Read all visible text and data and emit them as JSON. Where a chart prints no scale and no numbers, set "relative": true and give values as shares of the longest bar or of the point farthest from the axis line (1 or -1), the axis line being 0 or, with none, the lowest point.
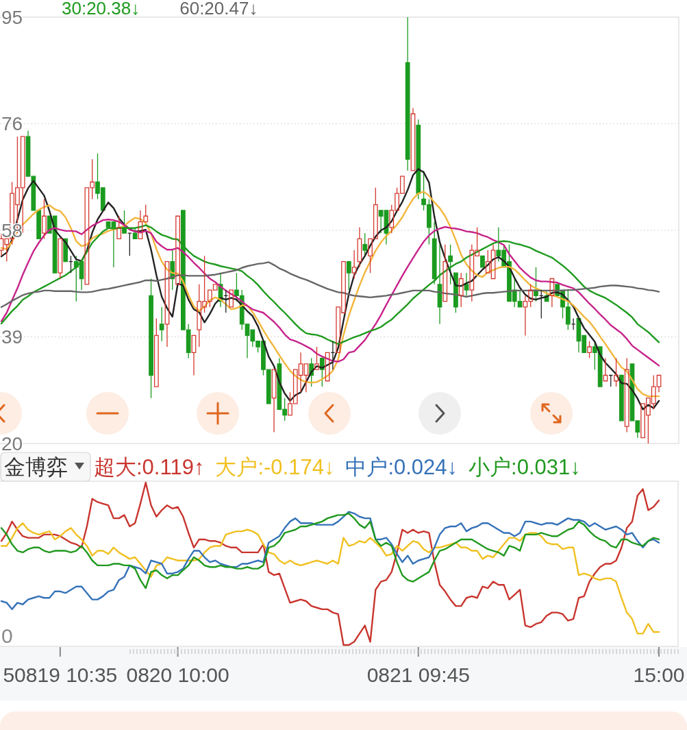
{
  "chart_data": [
    {
      "type": "candlestick",
      "categories": [
        null,
        null,
        null,
        null,
        null,
        null,
        null,
        null,
        null,
        null,
        null,
        null,
        null,
        null,
        null,
        null,
        null,
        null,
        null,
        null,
        null,
        null,
        null,
        null,
        null,
        null,
        null,
        null,
        null,
        null,
        null,
        null,
        null,
        null,
        null,
        null,
        null,
        null,
        null,
        null,
        null,
        null,
        null,
        null,
        null,
        null,
        null,
        null,
        null,
        null,
        null,
        null,
        null,
        null,
        null,
        null,
        null,
        null,
        null,
        null,
        null,
        null,
        null,
        null,
        null,
        null,
        null,
        null,
        null,
        null,
        null,
        null,
        null,
        null,
        null,
        null,
        null,
        null,
        null,
        null,
        null,
        null,
        null,
        null,
        null,
        null,
        null,
        null,
        null,
        null,
        null,
        null,
        null,
        null,
        null,
        null,
        null,
        null,
        null,
        null,
        null,
        null,
        null,
        null,
        null,
        null,
        null,
        null,
        null,
        null,
        null,
        null,
        null,
        null,
        null,
        null,
        null,
        null,
        null,
        null,
        null,
        null,
        null,
        null
      ],
      "ohlc": [
        [
          54,
          57,
          53,
          56
        ],
        [
          55,
          56,
          52,
          56
        ],
        [
          56,
          66,
          55,
          64
        ],
        [
          62,
          74,
          57,
          65
        ],
        [
          65,
          74,
          57,
          74
        ],
        [
          74,
          75,
          67,
          67
        ],
        [
          67,
          67,
          61,
          61
        ],
        [
          61,
          61,
          56,
          56
        ],
        [
          57,
          63,
          56,
          60
        ],
        [
          60,
          60,
          57,
          57
        ],
        [
          60,
          60,
          50,
          50
        ],
        [
          50,
          56,
          49,
          56
        ],
        [
          56,
          56,
          52,
          52
        ],
        [
          52,
          53,
          50,
          52
        ],
        [
          52,
          53,
          45,
          51
        ],
        [
          52,
          52,
          47,
          49
        ],
        [
          48,
          65,
          48,
          65
        ],
        [
          65,
          70,
          63,
          66
        ],
        [
          66,
          71,
          63,
          64
        ],
        [
          65,
          65,
          61,
          61
        ],
        [
          59,
          59,
          58,
          58
        ],
        [
          59,
          59,
          51,
          58
        ],
        [
          56,
          60,
          56,
          58
        ],
        [
          58,
          61,
          57,
          57
        ],
        [
          57,
          57,
          53,
          57
        ],
        [
          57,
          58,
          56,
          56
        ],
        [
          56,
          61,
          56,
          59
        ],
        [
          59,
          62,
          59,
          60
        ],
        [
          46,
          49,
          28,
          32
        ],
        [
          30,
          42,
          30,
          39
        ],
        [
          41,
          44,
          38,
          40
        ],
        [
          41,
          52,
          37,
          52
        ],
        [
          52,
          54,
          47,
          49
        ],
        [
          48,
          60,
          48,
          60
        ],
        [
          61,
          61,
          40,
          40
        ],
        [
          40,
          41,
          35,
          36
        ],
        [
          36,
          39,
          32,
          39
        ],
        [
          40,
          48,
          37,
          45
        ],
        [
          44,
          53,
          43,
          45
        ],
        [
          45,
          47,
          44,
          47
        ],
        [
          47,
          48,
          47,
          48
        ],
        [
          48,
          50,
          44,
          45
        ],
        [
          46,
          47,
          43,
          46
        ],
        [
          44,
          47,
          44,
          47
        ],
        [
          47,
          50,
          45,
          46
        ],
        [
          46,
          47,
          40,
          41
        ],
        [
          41,
          41,
          35,
          39
        ],
        [
          40,
          40,
          37,
          38
        ],
        [
          38,
          38,
          36,
          37
        ],
        [
          38,
          38,
          32,
          33
        ],
        [
          33,
          33,
          27,
          27
        ],
        [
          28,
          33,
          22,
          33
        ],
        [
          34,
          35,
          26,
          26
        ],
        [
          26,
          28,
          24,
          25
        ],
        [
          25,
          29,
          25,
          27
        ],
        [
          27,
          33,
          27,
          33
        ],
        [
          32,
          36,
          29,
          34
        ],
        [
          32,
          34,
          29,
          34
        ],
        [
          34,
          35,
          30,
          32
        ],
        [
          33,
          37,
          33,
          34
        ],
        [
          35,
          35,
          30,
          33
        ],
        [
          31,
          36,
          31,
          36
        ],
        [
          36,
          38,
          33,
          36
        ],
        [
          36,
          44,
          36,
          44
        ],
        [
          43,
          52,
          43,
          52
        ],
        [
          52,
          52,
          47,
          50
        ],
        [
          50,
          54,
          49,
          51
        ],
        [
          52,
          58,
          51,
          56
        ],
        [
          55,
          57,
          53,
          54
        ],
        [
          53,
          56,
          50,
          56
        ],
        [
          56,
          65,
          56,
          62
        ],
        [
          61,
          61,
          57,
          60
        ],
        [
          61,
          61,
          55,
          57
        ],
        [
          58,
          62,
          57,
          61
        ],
        [
          61,
          65,
          61,
          64
        ],
        [
          64,
          67,
          64,
          67
        ],
        [
          87,
          95,
          68,
          70
        ],
        [
          68,
          79,
          68,
          78
        ],
        [
          76,
          77,
          63,
          64
        ],
        [
          63,
          68,
          61,
          62
        ],
        [
          62,
          63,
          55,
          58
        ],
        [
          56,
          59,
          48,
          49
        ],
        [
          48,
          55,
          41,
          44
        ],
        [
          45,
          55,
          45,
          52
        ],
        [
          53,
          55,
          48,
          52
        ],
        [
          50,
          50,
          43,
          44
        ],
        [
          46,
          50,
          44,
          49
        ],
        [
          48,
          50,
          46,
          47
        ],
        [
          47,
          55,
          45,
          54
        ],
        [
          53,
          58,
          53,
          54
        ],
        [
          53,
          53,
          51,
          51
        ],
        [
          50,
          54,
          50,
          52
        ],
        [
          49,
          55,
          49,
          54
        ],
        [
          54,
          58,
          52,
          53
        ],
        [
          54,
          55,
          51,
          51
        ],
        [
          52,
          55,
          45,
          45
        ],
        [
          47,
          49,
          44,
          45
        ],
        [
          45,
          47,
          44,
          44
        ],
        [
          44,
          46,
          39,
          45
        ],
        [
          45,
          48,
          44,
          47
        ],
        [
          47,
          51,
          45,
          46
        ],
        [
          46,
          47,
          42,
          46
        ],
        [
          46,
          47,
          45,
          45
        ],
        [
          46,
          49,
          44,
          49
        ],
        [
          48,
          48,
          46,
          46
        ],
        [
          47,
          47,
          42,
          44
        ],
        [
          44,
          47,
          40,
          41
        ],
        [
          41,
          42,
          40,
          41
        ],
        [
          42,
          42,
          36,
          38
        ],
        [
          39,
          39,
          36,
          36
        ],
        [
          36,
          38,
          35,
          37
        ],
        [
          37,
          38,
          33,
          36
        ],
        [
          37,
          37,
          30,
          30
        ],
        [
          31,
          35,
          31,
          32
        ],
        [
          32,
          32,
          30,
          32
        ],
        [
          31,
          35,
          30,
          32
        ],
        [
          32,
          32,
          24,
          24
        ],
        [
          23,
          35,
          22,
          33
        ],
        [
          34,
          34,
          24,
          24
        ],
        [
          24,
          24,
          21,
          22
        ],
        [
          21,
          27,
          21,
          27
        ],
        [
          25,
          28,
          20,
          28
        ],
        [
          27,
          32,
          26,
          30
        ],
        [
          30,
          32,
          29,
          32
        ]
      ],
      "colors": [
        "#d4382f",
        "#d4382f",
        "#d4382f",
        "#d4382f",
        "#d4382f",
        "#1b9b1f",
        "#1b9b1f",
        "#1b9b1f",
        "#d4382f",
        "#1b9b1f",
        "#1b9b1f",
        "#d4382f",
        "#1b9b1f",
        "#222222",
        "#1b9b1f",
        "#1b9b1f",
        "#d4382f",
        "#d4382f",
        "#1b9b1f",
        "#1b9b1f",
        "#1b9b1f",
        "#1b9b1f",
        "#d4382f",
        "#1b9b1f",
        "#222222",
        "#1b9b1f",
        "#d4382f",
        "#d4382f",
        "#1b9b1f",
        "#d4382f",
        "#1b9b1f",
        "#d4382f",
        "#1b9b1f",
        "#d4382f",
        "#1b9b1f",
        "#1b9b1f",
        "#d4382f",
        "#d4382f",
        "#d4382f",
        "#d4382f",
        "#d4382f",
        "#1b9b1f",
        "#222222",
        "#d4382f",
        "#1b9b1f",
        "#1b9b1f",
        "#1b9b1f",
        "#1b9b1f",
        "#1b9b1f",
        "#1b9b1f",
        "#1b9b1f",
        "#d4382f",
        "#1b9b1f",
        "#1b9b1f",
        "#d4382f",
        "#d4382f",
        "#d4382f",
        "#d4382f",
        "#1b9b1f",
        "#d4382f",
        "#1b9b1f",
        "#d4382f",
        "#222222",
        "#d4382f",
        "#d4382f",
        "#1b9b1f",
        "#d4382f",
        "#d4382f",
        "#1b9b1f",
        "#d4382f",
        "#d4382f",
        "#1b9b1f",
        "#1b9b1f",
        "#d4382f",
        "#d4382f",
        "#d4382f",
        "#1b9b1f",
        "#d4382f",
        "#1b9b1f",
        "#1b9b1f",
        "#1b9b1f",
        "#1b9b1f",
        "#1b9b1f",
        "#d4382f",
        "#1b9b1f",
        "#1b9b1f",
        "#d4382f",
        "#1b9b1f",
        "#d4382f",
        "#d4382f",
        "#1b9b1f",
        "#d4382f",
        "#d4382f",
        "#1b9b1f",
        "#1b9b1f",
        "#1b9b1f",
        "#1b9b1f",
        "#1b9b1f",
        "#d4382f",
        "#d4382f",
        "#1b9b1f",
        "#222222",
        "#1b9b1f",
        "#d4382f",
        "#1b9b1f",
        "#1b9b1f",
        "#1b9b1f",
        "#222222",
        "#1b9b1f",
        "#1b9b1f",
        "#d4382f",
        "#1b9b1f",
        "#1b9b1f",
        "#d4382f",
        "#222222",
        "#d4382f",
        "#1b9b1f",
        "#d4382f",
        "#1b9b1f",
        "#1b9b1f",
        "#d4382f",
        "#d4382f",
        "#d4382f",
        "#d4382f"
      ],
      "ylim": [
        20,
        95
      ],
      "yticks": [
        95,
        {
          "value": 76.25,
          "label": "76"
        },
        {
          "value": 57.5,
          "label": "58"
        },
        {
          "value": 38.75,
          "label": "39"
        },
        20
      ],
      "grid": "y",
      "tick_labels": "y",
      "legend": "top left",
      "series": [
        {
          "type": "line",
          "color": "#222222",
          "values": [
            52.9,
            53.6,
            55.9,
            59.4,
            62.9,
            64.9,
            66.2,
            64.9,
            63.6,
            60.9,
            57.6,
            56.4,
            55.4,
            53.9,
            52.4,
            52.1,
            53.9,
            57.1,
            59.4,
            60.9,
            62.4,
            61.4,
            59.6,
            58.5,
            57.7,
            57.3,
            57.4,
            57.6,
            54.1,
            49.6,
            45.8,
            43.8,
            42.3,
            48.1,
            47.8,
            45.3,
            43.6,
            43.1,
            41.3,
            42.8,
            44.6,
            45.6,
            45.3,
            45.6,
            45.3,
            44.3,
            43.3,
            42.4,
            40.6,
            38.1,
            35.3,
            33.6,
            30.8,
            28.8,
            27.5,
            28.5,
            29.0,
            30.8,
            32.6,
            33.6,
            33.3,
            33.8,
            34.3,
            36.8,
            41.6,
            46.3,
            49.6,
            51.5,
            53.0,
            54.8,
            56.4,
            57.5,
            58.0,
            59.1,
            60.9,
            62.5,
            64.6,
            67.2,
            68.3,
            67.7,
            65.9,
            59.9,
            55.4,
            52.6,
            50.1,
            47.8,
            47.7,
            48.2,
            48.6,
            49.6,
            50.6,
            51.4,
            52.4,
            52.8,
            52.1,
            51.1,
            49.1,
            47.4,
            46.2,
            45.5,
            45.3,
            45.6,
            45.8,
            46.5,
            46.6,
            46.2,
            45.2,
            44.1,
            42.1,
            40.3,
            39.1,
            37.9,
            35.6,
            34.2,
            33.2,
            32.2,
            30.6,
            30.5,
            29.4,
            27.9,
            26.0,
            26.8,
            26.2,
            27.5
          ]
        },
        {
          "type": "line",
          "color": "#f2b63c",
          "values": [
            54.4,
            54.2,
            55.5,
            57.5,
            58.5,
            59.4,
            60.4,
            61.1,
            61.6,
            61.9,
            61.2,
            60.9,
            59.8,
            57.9,
            55.6,
            54.7,
            55.0,
            56.1,
            56.6,
            56.9,
            57.4,
            57.6,
            57.9,
            58.3,
            59.1,
            59.7,
            59.5,
            58.8,
            56.9,
            54.2,
            52.0,
            50.6,
            50.0,
            49.9,
            48.5,
            46.1,
            44.1,
            43.3,
            44.1,
            45.2,
            45.7,
            45.3,
            44.5,
            43.6,
            43.8,
            44.3,
            44.3,
            43.1,
            41.6,
            39.9,
            38.4,
            37.0,
            35.5,
            34.1,
            32.8,
            31.9,
            31.2,
            30.8,
            30.7,
            30.8,
            31.3,
            31.9,
            32.8,
            34.8,
            39.1,
            42.5,
            45.2,
            47.8,
            50.1,
            52.0,
            53.9,
            55.4,
            56.5,
            57.4,
            58.5,
            59.8,
            61.5,
            63.0,
            64.0,
            64.3,
            63.6,
            62.4,
            61.4,
            60.0,
            58.1,
            55.8,
            53.2,
            51.5,
            50.4,
            49.6,
            49.3,
            50.1,
            50.5,
            50.9,
            51.1,
            51.1,
            50.6,
            49.7,
            48.7,
            47.8,
            47.3,
            46.9,
            46.4,
            46.1,
            45.8,
            45.4,
            45.0,
            44.3,
            43.3,
            42.3,
            41.4,
            40.2,
            38.8,
            37.5,
            36.1,
            34.7,
            33.4,
            32.7,
            31.2,
            29.6,
            28.7,
            28.3,
            28.3,
            28.3
          ]
        },
        {
          "type": "line",
          "color": "#c7238b",
          "values": [
            41.5,
            43.0,
            45.2,
            47.3,
            49.7,
            51.8,
            53.8,
            55.3,
            56.6,
            57.6,
            57.9,
            57.6,
            57.4,
            57.4,
            57.3,
            56.8,
            57.6,
            58.3,
            58.8,
            59.3,
            59.4,
            59.3,
            59.0,
            58.4,
            57.6,
            57.3,
            57.1,
            57.4,
            57.0,
            55.5,
            54.7,
            54.1,
            54.1,
            54.4,
            53.7,
            52.8,
            51.8,
            50.9,
            49.9,
            49.0,
            48.4,
            47.6,
            46.9,
            46.3,
            45.7,
            45.0,
            44.2,
            43.6,
            43.3,
            43.0,
            42.2,
            41.4,
            40.4,
            39.2,
            38.3,
            38.0,
            37.6,
            37.1,
            36.6,
            35.8,
            35.3,
            34.9,
            34.5,
            34.4,
            34.8,
            36.0,
            36.2,
            37.2,
            38.2,
            39.6,
            41.0,
            42.6,
            44.4,
            46.1,
            47.8,
            49.5,
            51.1,
            52.6,
            54.1,
            55.5,
            56.6,
            57.4,
            57.8,
            58.1,
            57.9,
            57.8,
            57.6,
            57.3,
            57.2,
            57.0,
            56.6,
            56.3,
            55.8,
            55.4,
            54.9,
            53.3,
            52.1,
            50.9,
            50.0,
            49.2,
            48.7,
            48.5,
            48.5,
            48.4,
            48.3,
            47.9,
            47.6,
            47.3,
            46.6,
            45.6,
            44.6,
            43.7,
            42.7,
            41.8,
            40.8,
            40.1,
            39.4,
            38.4,
            37.2,
            36.5,
            35.8,
            35.1,
            34.4,
            33.7
          ]
        },
        {
          "type": "line",
          "name": "30:20.38↓",
          "color": "#1e9a1e",
          "values": [
            41.1,
            42.2,
            43.3,
            44.2,
            45.3,
            45.9,
            46.6,
            47.1,
            47.6,
            48.1,
            48.6,
            49.1,
            49.6,
            50.3,
            51.0,
            52.1,
            53.7,
            55.3,
            56.3,
            57.3,
            57.9,
            57.8,
            57.9,
            57.9,
            57.9,
            57.9,
            58.1,
            58.4,
            58.0,
            57.3,
            56.7,
            56.4,
            56.0,
            55.9,
            54.8,
            53.8,
            53.0,
            52.5,
            52.0,
            51.7,
            51.5,
            51.2,
            51.0,
            50.8,
            50.6,
            50.3,
            49.5,
            48.8,
            47.9,
            46.8,
            45.8,
            44.9,
            43.9,
            43.0,
            42.0,
            41.0,
            40.1,
            39.4,
            39.2,
            39.1,
            38.8,
            38.3,
            37.9,
            37.5,
            37.9,
            38.3,
            38.7,
            39.0,
            39.4,
            39.8,
            40.1,
            40.5,
            41.2,
            41.8,
            42.7,
            43.6,
            44.5,
            45.5,
            46.3,
            47.1,
            47.9,
            48.6,
            49.6,
            50.3,
            51.0,
            51.6,
            52.0,
            52.7,
            53.2,
            53.7,
            54.2,
            54.7,
            55.2,
            55.5,
            55.6,
            55.5,
            55.2,
            55.0,
            54.7,
            54.4,
            53.9,
            53.5,
            53.1,
            52.7,
            52.0,
            51.3,
            50.5,
            49.6,
            48.6,
            47.6,
            46.9,
            46.4,
            46.0,
            45.6,
            45.0,
            44.4,
            43.7,
            43.0,
            42.2,
            41.0,
            40.3,
            39.6,
            38.7,
            37.8
          ]
        },
        {
          "type": "line",
          "name": "60:20.47↓",
          "color": "#666666",
          "values": [
            44.0,
            44.5,
            45.1,
            45.6,
            46.1,
            46.4,
            46.6,
            46.7,
            46.9,
            46.9,
            46.8,
            46.8,
            46.8,
            46.8,
            46.7,
            46.6,
            46.6,
            46.7,
            46.9,
            47.1,
            47.2,
            47.4,
            47.6,
            47.8,
            48.0,
            48.2,
            48.4,
            48.7,
            48.7,
            48.6,
            48.8,
            49.0,
            49.3,
            49.6,
            49.6,
            49.5,
            49.5,
            49.5,
            49.5,
            49.6,
            49.7,
            49.9,
            50.1,
            50.3,
            50.5,
            50.9,
            51.2,
            51.4,
            51.6,
            51.7,
            51.9,
            51.4,
            50.8,
            50.4,
            49.9,
            49.5,
            49.1,
            48.8,
            48.4,
            48.0,
            47.6,
            47.2,
            46.9,
            46.6,
            46.5,
            46.2,
            46.0,
            45.9,
            45.8,
            45.7,
            45.8,
            45.9,
            46.0,
            46.2,
            46.3,
            46.5,
            46.7,
            46.9,
            46.9,
            46.9,
            46.9,
            46.7,
            46.6,
            46.4,
            46.3,
            46.2,
            46.0,
            45.8,
            46.0,
            46.2,
            46.4,
            46.5,
            46.5,
            46.6,
            46.7,
            46.8,
            46.9,
            46.9,
            46.9,
            46.9,
            46.9,
            46.9,
            46.9,
            46.9,
            46.9,
            46.9,
            47.0,
            47.0,
            47.1,
            47.2,
            47.3,
            47.4,
            47.6,
            47.7,
            47.8,
            47.8,
            47.7,
            47.6,
            47.5,
            47.3,
            47.2,
            47.0,
            46.9,
            46.7
          ]
        }
      ]
    },
    {
      "type": "line",
      "title": "金博弈",
      "relative": true,
      "annotations": [
        "0"
      ],
      "categories": [
        null,
        null,
        null,
        null,
        null,
        null,
        null,
        null,
        null,
        null,
        null,
        "50819 10:35",
        null,
        null,
        null,
        null,
        null,
        null,
        null,
        null,
        null,
        null,
        null,
        null,
        null,
        null,
        null,
        null,
        null,
        null,
        null,
        null,
        null,
        "0820 10:00",
        null,
        null,
        null,
        null,
        null,
        null,
        null,
        null,
        null,
        null,
        null,
        null,
        null,
        null,
        null,
        null,
        null,
        null,
        null,
        null,
        null,
        null,
        null,
        null,
        null,
        null,
        null,
        null,
        null,
        null,
        null,
        null,
        null,
        null,
        null,
        null,
        null,
        null,
        null,
        null,
        null,
        null,
        null,
        null,
        "0821 09:45",
        null,
        null,
        null,
        null,
        null,
        null,
        null,
        null,
        null,
        null,
        null,
        null,
        null,
        null,
        null,
        null,
        null,
        null,
        null,
        null,
        null,
        null,
        null,
        null,
        null,
        null,
        null,
        null,
        null,
        null,
        null,
        null,
        null,
        null,
        null,
        null,
        null,
        null,
        null,
        null,
        null,
        null,
        null,
        null,
        "15:00"
      ],
      "legend": "top left",
      "series": [
        {
          "name": "超大:0.119↑",
          "color": "#c8352e",
          "values": [
            0.64,
            0.69,
            0.76,
            0.71,
            0.67,
            0.66,
            0.66,
            0.66,
            0.68,
            0.68,
            0.68,
            0.67,
            0.65,
            0.63,
            0.62,
            0.6,
            0.73,
            0.9,
            0.88,
            0.87,
            0.86,
            0.78,
            0.78,
            0.8,
            0.73,
            0.75,
            0.87,
            1,
            0.86,
            0.79,
            0.83,
            0.86,
            0.84,
            0.85,
            0.79,
            0.69,
            0.6,
            0.65,
            0.65,
            0.64,
            0.64,
            0.63,
            0.61,
            0.6,
            0.6,
            0.57,
            0.57,
            0.57,
            0.57,
            0.62,
            0.45,
            0.43,
            0.44,
            0.35,
            0.26,
            0.27,
            0.28,
            0.27,
            0.24,
            0.23,
            0.22,
            0.22,
            0.2,
            0.19,
            0,
            0,
            0.02,
            0.07,
            0.12,
            0.02,
            0.34,
            0.39,
            0.4,
            0.45,
            0.57,
            0.71,
            0.69,
            0.71,
            0.69,
            0.7,
            0.69,
            0.51,
            0.37,
            0.33,
            0.28,
            0.24,
            0.24,
            0.29,
            0.3,
            0.29,
            0.36,
            0.35,
            0.39,
            0.37,
            0.37,
            0.28,
            0.31,
            0.34,
            0.12,
            0.11,
            0.13,
            0.14,
            0.18,
            0.2,
            0.2,
            0.19,
            0.15,
            0.16,
            0.29,
            0.3,
            0.39,
            0.44,
            0.48,
            0.5,
            0.5,
            0.52,
            0.6,
            0.72,
            0.76,
            0.92,
            0.96,
            0.83,
            0.85,
            0.89
          ]
        },
        {
          "name": "大户:-0.174↓",
          "color": "#f0c020",
          "values": [
            0.61,
            0.61,
            0.66,
            0.72,
            0.75,
            0.71,
            0.69,
            0.68,
            0.69,
            0.7,
            0.65,
            0.67,
            0.7,
            0.72,
            0.68,
            0.65,
            0.61,
            0.55,
            0.58,
            0.58,
            0.56,
            0.6,
            0.57,
            0.55,
            0.53,
            0.54,
            0.5,
            0.46,
            0.42,
            0.49,
            0.5,
            0.54,
            0.53,
            0.52,
            0.52,
            0.52,
            0.52,
            0.53,
            0.57,
            0.6,
            0.61,
            0.61,
            0.68,
            0.69,
            0.7,
            0.7,
            0.71,
            0.7,
            0.68,
            0.62,
            0.57,
            0.56,
            0.52,
            0.5,
            0.52,
            0.5,
            0.49,
            0.5,
            0.51,
            0.52,
            0.51,
            0.5,
            0.52,
            0.5,
            0.66,
            0.61,
            0.62,
            0.64,
            0.63,
            0.66,
            0.63,
            0.6,
            0.55,
            0.56,
            0.61,
            0.58,
            0.61,
            0.64,
            0.63,
            0.59,
            0.57,
            0.6,
            0.6,
            0.61,
            0.62,
            0.63,
            0.6,
            0.6,
            0.58,
            0.58,
            0.53,
            0.55,
            0.54,
            0.58,
            0.62,
            0.66,
            0.66,
            0.64,
            0.68,
            0.69,
            0.69,
            0.67,
            0.63,
            0.62,
            0.62,
            0.59,
            0.6,
            0.6,
            0.43,
            0.44,
            0.43,
            0.41,
            0.4,
            0.41,
            0.41,
            0.39,
            0.29,
            0.2,
            0.16,
            0.07,
            0.07,
            0.13,
            0.08,
            0.08
          ]
        },
        {
          "name": "中户:0.024↓",
          "color": "#3572b8",
          "values": [
            0.27,
            0.26,
            0.22,
            0.26,
            0.25,
            0.28,
            0.29,
            0.3,
            0.29,
            0.29,
            0.33,
            0.33,
            0.32,
            0.34,
            0.36,
            0.36,
            0.32,
            0.28,
            0.28,
            0.3,
            0.33,
            0.34,
            0.4,
            0.42,
            0.49,
            0.48,
            0.47,
            0.44,
            0.52,
            0.51,
            0.5,
            0.44,
            0.44,
            0.45,
            0.47,
            0.53,
            0.58,
            0.58,
            0.54,
            0.51,
            0.52,
            0.5,
            0.49,
            0.48,
            0.48,
            0.5,
            0.5,
            0.51,
            0.52,
            0.51,
            0.63,
            0.65,
            0.67,
            0.72,
            0.76,
            0.78,
            0.75,
            0.75,
            0.75,
            0.74,
            0.74,
            0.74,
            0.74,
            0.76,
            0.79,
            0.82,
            0.81,
            0.79,
            0.78,
            0.78,
            0.65,
            0.65,
            0.66,
            0.62,
            0.56,
            0.51,
            0.55,
            0.5,
            0.52,
            0.53,
            0.54,
            0.6,
            0.68,
            0.72,
            0.73,
            0.73,
            0.75,
            0.7,
            0.72,
            0.73,
            0.75,
            0.75,
            0.73,
            0.71,
            0.69,
            0.69,
            0.67,
            0.69,
            0.76,
            0.76,
            0.75,
            0.74,
            0.75,
            0.75,
            0.74,
            0.76,
            0.78,
            0.77,
            0.77,
            0.76,
            0.73,
            0.75,
            0.73,
            0.71,
            0.72,
            0.73,
            0.71,
            0.68,
            0.69,
            0.64,
            0.6,
            0.64,
            0.65,
            0.63
          ]
        },
        {
          "name": "小户:0.031↓",
          "color": "#20991f",
          "values": [
            0.72,
            0.68,
            0.62,
            0.58,
            0.57,
            0.59,
            0.6,
            0.6,
            0.58,
            0.57,
            0.58,
            0.58,
            0.58,
            0.57,
            0.58,
            0.61,
            0.57,
            0.52,
            0.49,
            0.49,
            0.49,
            0.5,
            0.5,
            0.49,
            0.49,
            0.47,
            0.4,
            0.35,
            0.45,
            0.46,
            0.43,
            0.41,
            0.43,
            0.43,
            0.46,
            0.49,
            0.54,
            0.52,
            0.49,
            0.48,
            0.48,
            0.49,
            0.48,
            0.48,
            0.47,
            0.47,
            0.48,
            0.47,
            0.47,
            0.49,
            0.6,
            0.61,
            0.64,
            0.69,
            0.7,
            0.71,
            0.73,
            0.73,
            0.74,
            0.75,
            0.76,
            0.78,
            0.79,
            0.8,
            0.8,
            0.81,
            0.78,
            0.74,
            0.72,
            0.76,
            0.65,
            0.61,
            0.63,
            0.61,
            0.51,
            0.43,
            0.4,
            0.39,
            0.41,
            0.43,
            0.45,
            0.52,
            0.58,
            0.59,
            0.61,
            0.63,
            0.65,
            0.65,
            0.65,
            0.63,
            0.61,
            0.59,
            0.58,
            0.57,
            0.55,
            0.61,
            0.6,
            0.58,
            0.68,
            0.68,
            0.68,
            0.69,
            0.68,
            0.67,
            0.67,
            0.69,
            0.71,
            0.72,
            0.76,
            0.74,
            0.7,
            0.67,
            0.65,
            0.64,
            0.61,
            0.6,
            0.65,
            0.65,
            0.63,
            0.62,
            0.61,
            0.64,
            0.66,
            0.65
          ]
        }
      ]
    }
  ]
}
